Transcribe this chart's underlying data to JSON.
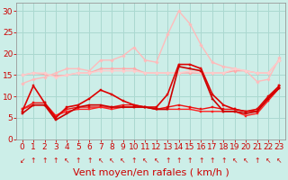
{
  "xlabel": "Vent moyen/en rafales ( km/h )",
  "background_color": "#cceee8",
  "grid_color": "#aad8d0",
  "ylim": [
    0,
    32
  ],
  "yticks": [
    0,
    5,
    10,
    15,
    20,
    25,
    30
  ],
  "series": [
    {
      "data": [
        15.0,
        15.5,
        15.2,
        14.8,
        15.0,
        15.5,
        15.5,
        16.5,
        16.5,
        16.5,
        16.5,
        15.5,
        15.5,
        15.5,
        15.5,
        15.5,
        15.5,
        15.5,
        15.5,
        16.0,
        16.0,
        15.5,
        15.5,
        18.5
      ],
      "color": "#ffaaaa",
      "lw": 1.0,
      "marker": "D",
      "ms": 1.8,
      "zorder": 2
    },
    {
      "data": [
        13.0,
        14.0,
        14.5,
        15.5,
        16.5,
        16.5,
        16.0,
        18.5,
        18.5,
        19.5,
        21.5,
        18.5,
        18.0,
        24.5,
        30.0,
        27.0,
        22.0,
        18.0,
        17.0,
        16.5,
        16.0,
        13.5,
        14.0,
        19.0
      ],
      "color": "#ffbbbb",
      "lw": 1.0,
      "marker": "D",
      "ms": 1.8,
      "zorder": 2
    },
    {
      "data": [
        15.0,
        15.5,
        15.5,
        14.5,
        15.0,
        15.5,
        15.5,
        16.0,
        16.0,
        16.0,
        16.0,
        15.5,
        15.5,
        15.5,
        15.5,
        16.0,
        15.5,
        15.5,
        15.5,
        16.5,
        16.0,
        15.5,
        15.5,
        18.5
      ],
      "color": "#ffcccc",
      "lw": 1.0,
      "marker": "D",
      "ms": 1.8,
      "zorder": 2
    },
    {
      "data": [
        6.5,
        12.5,
        8.5,
        5.0,
        7.5,
        8.0,
        9.5,
        11.5,
        10.5,
        9.0,
        8.0,
        7.5,
        7.5,
        10.5,
        17.5,
        17.5,
        16.5,
        10.5,
        8.0,
        7.0,
        6.5,
        7.0,
        10.0,
        12.5
      ],
      "color": "#dd0000",
      "lw": 1.2,
      "marker": "s",
      "ms": 2.0,
      "zorder": 4
    },
    {
      "data": [
        6.0,
        8.0,
        8.0,
        4.5,
        6.0,
        7.5,
        8.0,
        8.0,
        7.5,
        7.5,
        7.5,
        7.5,
        7.0,
        7.0,
        17.0,
        16.5,
        16.0,
        9.5,
        6.5,
        6.5,
        6.0,
        6.5,
        9.5,
        12.0
      ],
      "color": "#cc0000",
      "lw": 1.2,
      "marker": "s",
      "ms": 2.0,
      "zorder": 4
    },
    {
      "data": [
        7.0,
        8.5,
        8.5,
        5.5,
        7.0,
        7.5,
        7.5,
        7.5,
        7.5,
        8.0,
        8.0,
        7.5,
        7.0,
        7.5,
        8.0,
        7.5,
        7.0,
        7.5,
        7.0,
        7.0,
        6.5,
        6.5,
        9.5,
        12.5
      ],
      "color": "#ee1111",
      "lw": 1.0,
      "marker": "s",
      "ms": 1.8,
      "zorder": 3
    },
    {
      "data": [
        7.0,
        8.0,
        8.0,
        5.5,
        6.5,
        7.0,
        7.0,
        7.5,
        7.0,
        7.5,
        7.5,
        7.5,
        7.0,
        7.0,
        7.0,
        7.0,
        6.5,
        6.5,
        6.5,
        6.5,
        5.5,
        6.0,
        9.0,
        12.0
      ],
      "color": "#ff2222",
      "lw": 1.0,
      "marker": "s",
      "ms": 1.8,
      "zorder": 3
    }
  ],
  "arrow_chars": [
    "↙",
    "↑",
    "↑",
    "↑",
    "↖",
    "↑",
    "↑",
    "↖",
    "↖",
    "↖",
    "↑",
    "↖",
    "↖",
    "↑",
    "↑",
    "↑",
    "↑",
    "↑",
    "↑",
    "↖",
    "↖",
    "↑",
    "↖",
    "↖"
  ],
  "arrow_color": "#cc0000",
  "text_color": "#cc0000",
  "xlabel_fontsize": 8,
  "tick_fontsize": 6.5
}
